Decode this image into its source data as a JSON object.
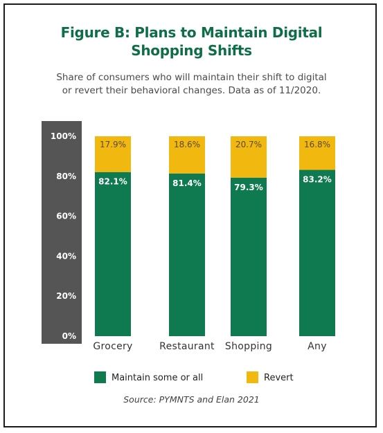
{
  "title_lines": [
    "Figure B: Plans to Maintain Digital",
    "Shopping Shifts"
  ],
  "subtitle_lines": [
    "Share of consumers who will maintain their shift to digital",
    "or revert their behavioral changes. Data as of 11/2020."
  ],
  "source": "Source: PYMNTS and Elan 2021",
  "colors": {
    "maintain": "#0f7a4f",
    "revert": "#f1b80f",
    "axis_band": "#555555"
  },
  "chart_data": {
    "type": "bar",
    "stacked": true,
    "categories": [
      "Grocery",
      "Restaurant",
      "Shopping",
      "Any"
    ],
    "series": [
      {
        "name": "Maintain some or all",
        "values": [
          82.1,
          81.4,
          79.3,
          83.2
        ],
        "labels": [
          "82.1%",
          "81.4%",
          "79.3%",
          "83.2%"
        ]
      },
      {
        "name": "Revert",
        "values": [
          17.9,
          18.6,
          20.7,
          16.8
        ],
        "labels": [
          "17.9%",
          "18.6%",
          "20.7%",
          "16.8%"
        ]
      }
    ],
    "yticks": [
      "0%",
      "20%",
      "40%",
      "60%",
      "80%",
      "100%"
    ],
    "ylim": [
      0,
      100
    ],
    "legend_position": "bottom"
  }
}
